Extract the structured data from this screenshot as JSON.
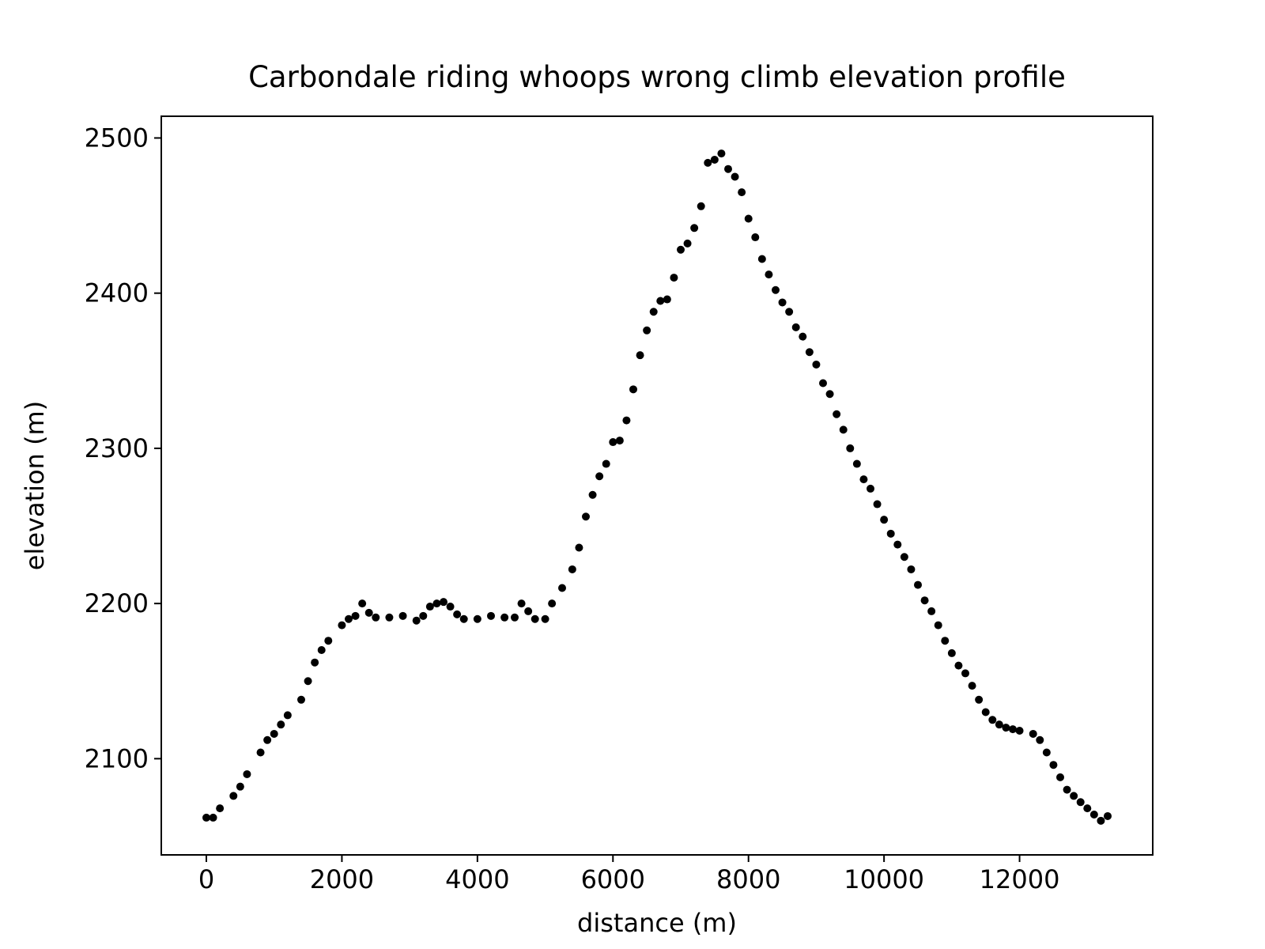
{
  "chart_data": {
    "type": "scatter",
    "title": "Carbondale riding whoops wrong climb elevation profile",
    "xlabel": "distance (m)",
    "ylabel": "elevation (m)",
    "color": "#000000",
    "x": [
      0,
      100,
      200,
      400,
      500,
      600,
      800,
      900,
      1000,
      1100,
      1200,
      1400,
      1500,
      1600,
      1700,
      1800,
      2000,
      2100,
      2200,
      2300,
      2400,
      2500,
      2700,
      2900,
      3100,
      3200,
      3300,
      3400,
      3500,
      3600,
      3700,
      3800,
      4000,
      4200,
      4400,
      4550,
      4650,
      4750,
      4850,
      5000,
      5100,
      5250,
      5400,
      5500,
      5600,
      5700,
      5800,
      5900,
      6000,
      6100,
      6200,
      6300,
      6400,
      6500,
      6600,
      6700,
      6800,
      6900,
      7000,
      7100,
      7200,
      7300,
      7400,
      7500,
      7600,
      7700,
      7800,
      7900,
      8000,
      8100,
      8200,
      8300,
      8400,
      8500,
      8600,
      8700,
      8800,
      8900,
      9000,
      9100,
      9200,
      9300,
      9400,
      9500,
      9600,
      9700,
      9800,
      9900,
      10000,
      10100,
      10200,
      10300,
      10400,
      10500,
      10600,
      10700,
      10800,
      10900,
      11000,
      11100,
      11200,
      11300,
      11400,
      11500,
      11600,
      11700,
      11800,
      11900,
      12000,
      12200,
      12300,
      12400,
      12500,
      12600,
      12700,
      12800,
      12900,
      13000,
      13100,
      13200,
      13300
    ],
    "values": [
      2062,
      2062,
      2068,
      2076,
      2082,
      2090,
      2104,
      2112,
      2116,
      2122,
      2128,
      2138,
      2150,
      2162,
      2170,
      2176,
      2186,
      2190,
      2192,
      2200,
      2194,
      2191,
      2191,
      2192,
      2189,
      2192,
      2198,
      2200,
      2201,
      2198,
      2193,
      2190,
      2190,
      2192,
      2191,
      2191,
      2200,
      2195,
      2190,
      2190,
      2200,
      2210,
      2222,
      2236,
      2256,
      2270,
      2282,
      2290,
      2304,
      2305,
      2318,
      2338,
      2360,
      2376,
      2388,
      2395,
      2396,
      2410,
      2428,
      2432,
      2442,
      2456,
      2484,
      2486,
      2490,
      2480,
      2475,
      2465,
      2448,
      2436,
      2422,
      2412,
      2402,
      2394,
      2388,
      2378,
      2372,
      2362,
      2354,
      2342,
      2335,
      2322,
      2312,
      2300,
      2290,
      2280,
      2274,
      2264,
      2254,
      2245,
      2238,
      2230,
      2222,
      2212,
      2202,
      2195,
      2186,
      2176,
      2168,
      2160,
      2155,
      2147,
      2138,
      2130,
      2125,
      2122,
      2120,
      2119,
      2118,
      2116,
      2112,
      2104,
      2096,
      2088,
      2080,
      2076,
      2072,
      2068,
      2064,
      2060,
      2063
    ],
    "xlim": [
      -665,
      13965
    ],
    "ylim": [
      2038,
      2514
    ],
    "xticks": [
      0,
      2000,
      4000,
      6000,
      8000,
      10000,
      12000
    ],
    "yticks": [
      2100,
      2200,
      2300,
      2400,
      2500
    ]
  }
}
